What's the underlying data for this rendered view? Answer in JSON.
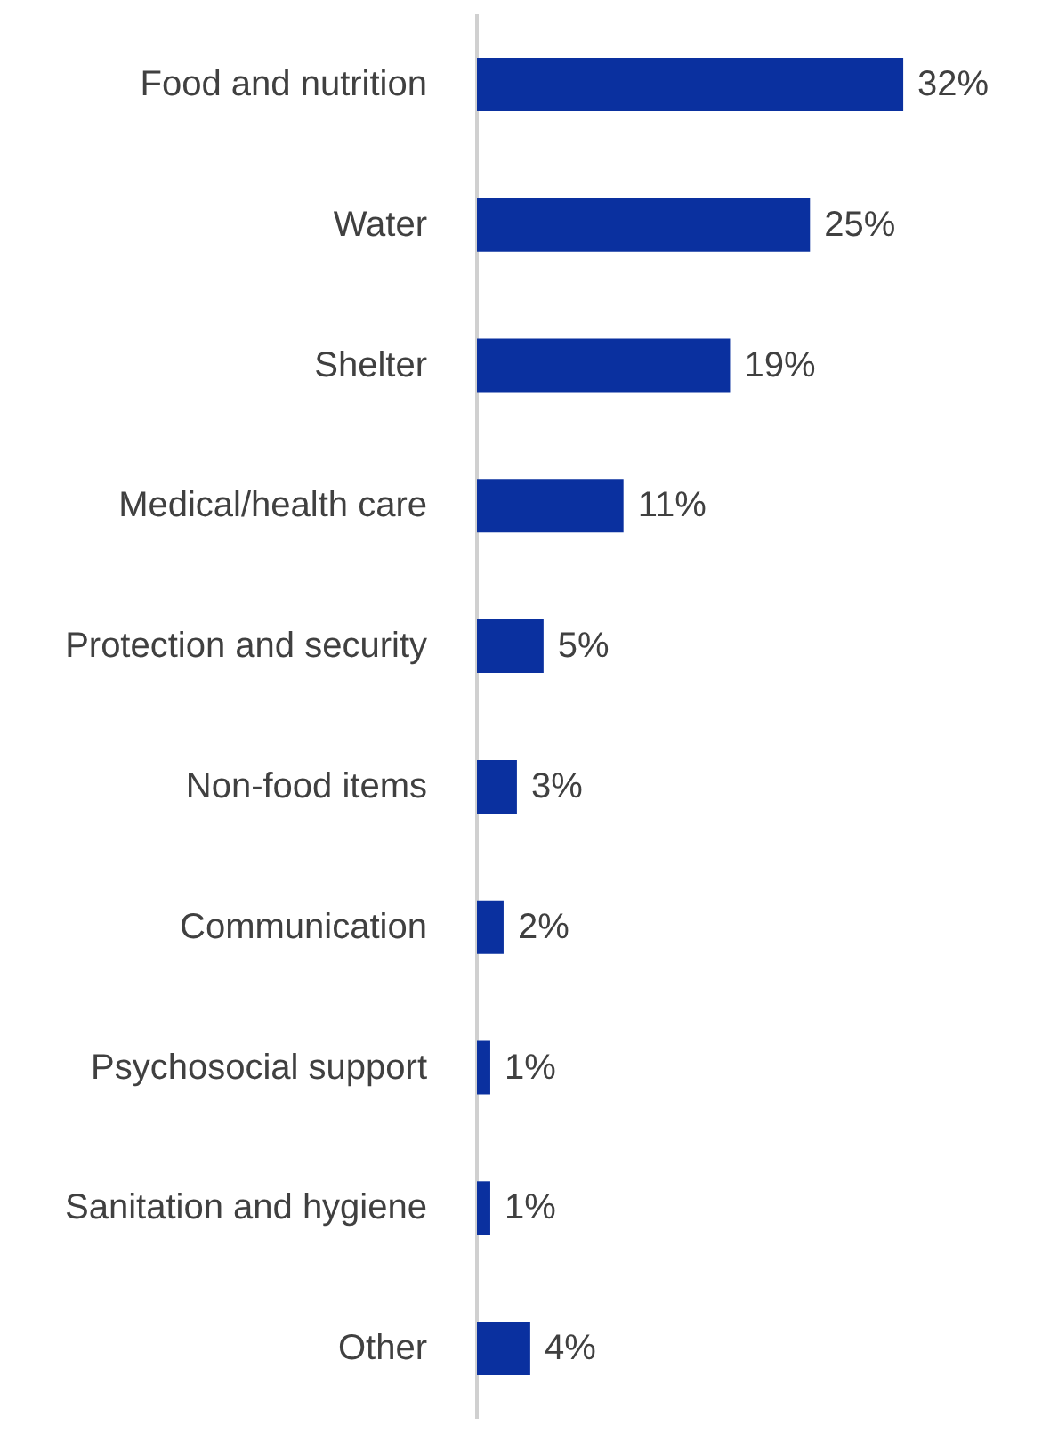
{
  "chart_data": {
    "type": "bar",
    "orientation": "horizontal",
    "categories": [
      "Food and nutrition",
      "Water",
      "Shelter",
      "Medical/health care",
      "Protection and security",
      "Non-food items",
      "Communication",
      "Psychosocial support",
      "Sanitation and hygiene",
      "Other"
    ],
    "values": [
      32,
      25,
      19,
      11,
      5,
      3,
      2,
      1,
      1,
      4
    ],
    "value_labels": [
      "32%",
      "25%",
      "19%",
      "11%",
      "5%",
      "3%",
      "2%",
      "1%",
      "1%",
      "4%"
    ],
    "color": "#0a309f"
  }
}
